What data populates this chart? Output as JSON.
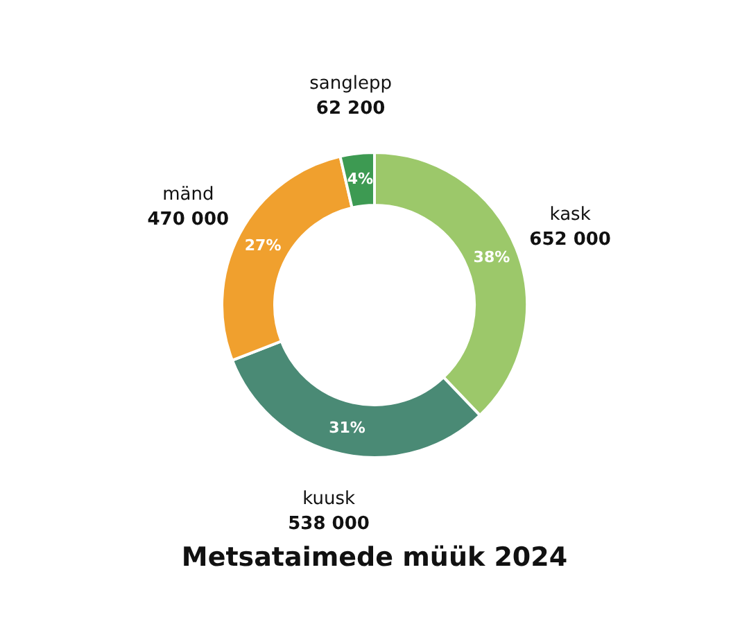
{
  "chart_data": {
    "type": "donut",
    "title": "Metsataimede müük 2024",
    "categories": [
      "kask",
      "kuusk",
      "mänd",
      "sanglepp"
    ],
    "values": [
      652000,
      538000,
      470000,
      62200
    ],
    "colors": [
      "#9cc86a",
      "#4a8a75",
      "#f0a02e",
      "#3d9a52"
    ],
    "value_labels": [
      "652 000",
      "538 000",
      "470 000",
      "62 200"
    ],
    "annotations": [
      {
        "text": "38%",
        "x": "kask"
      },
      {
        "text": "31%",
        "x": "kuusk"
      },
      {
        "text": "27%",
        "x": "mänd"
      },
      {
        "text": "4%",
        "x": "sanglepp"
      }
    ]
  }
}
